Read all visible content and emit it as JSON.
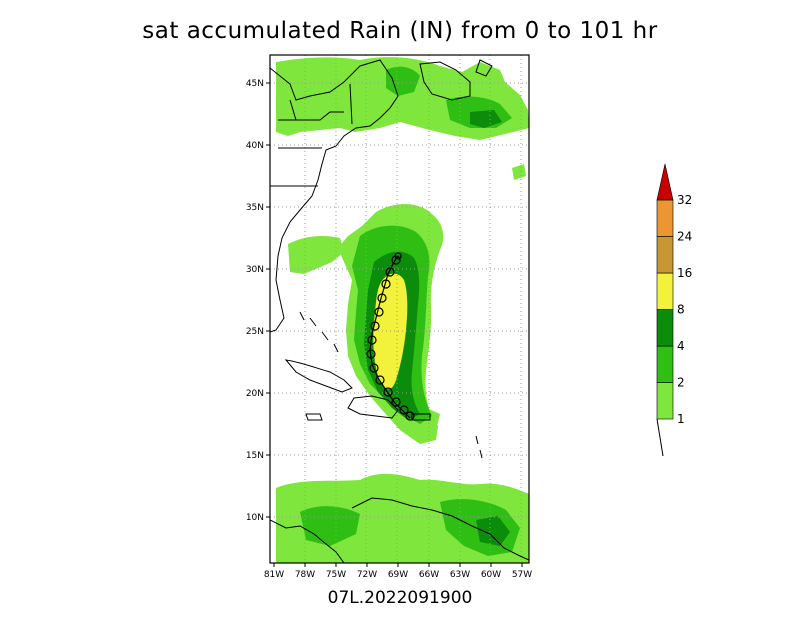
{
  "title": "sat accumulated Rain (IN) from 0 to 101 hr",
  "footer": "07L.2022091900",
  "map": {
    "lat_labels": [
      {
        "lat": 45,
        "label": "45N"
      },
      {
        "lat": 40,
        "label": "40N"
      },
      {
        "lat": 35,
        "label": "35N"
      },
      {
        "lat": 30,
        "label": "30N"
      },
      {
        "lat": 25,
        "label": "25N"
      },
      {
        "lat": 20,
        "label": "20N"
      },
      {
        "lat": 15,
        "label": "15N"
      },
      {
        "lat": 10,
        "label": "10N"
      }
    ],
    "lon_labels": [
      {
        "lon": -81,
        "label": "81W"
      },
      {
        "lon": -78,
        "label": "78W"
      },
      {
        "lon": -75,
        "label": "75W"
      },
      {
        "lon": -72,
        "label": "72W"
      },
      {
        "lon": -69,
        "label": "69W"
      },
      {
        "lon": -66,
        "label": "66W"
      },
      {
        "lon": -63,
        "label": "63W"
      },
      {
        "lon": -60,
        "label": "60W"
      },
      {
        "lon": -57,
        "label": "57W"
      }
    ]
  },
  "colorbar": {
    "levels": [
      "1",
      "2",
      "4",
      "8",
      "16",
      "24",
      "32"
    ],
    "colors": [
      "#7ee63c",
      "#2fbe14",
      "#0b8c0b",
      "#f2f23c",
      "#c89632",
      "#eb9632",
      "#c80000"
    ]
  }
}
